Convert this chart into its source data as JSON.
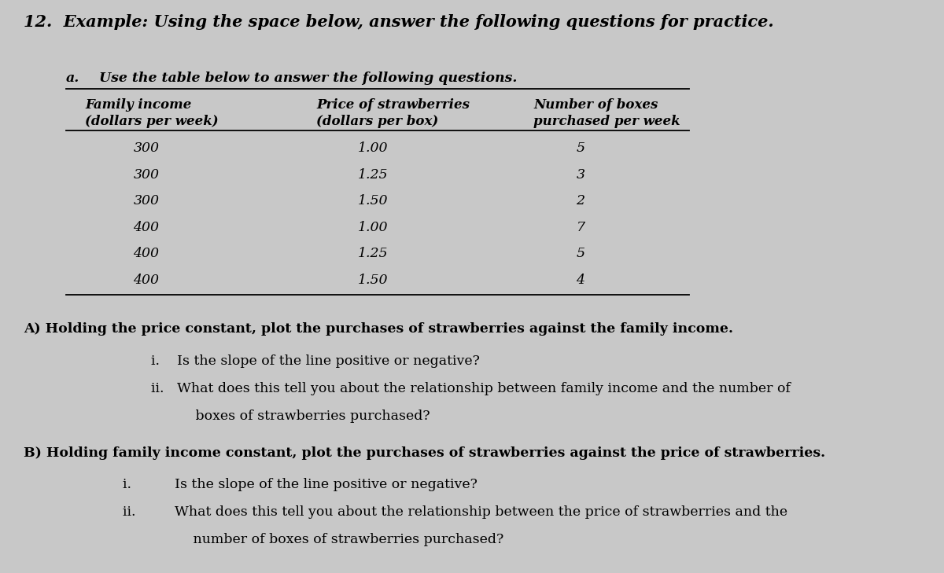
{
  "bg_color": "#c8c8c8",
  "title": "12.  Example: Using the space below, answer the following questions for practice.",
  "section_a_label": "a.",
  "section_a_text": "Use the table below to answer the following questions.",
  "col1_header": "Family income",
  "col1_subheader": "(dollars per week)",
  "col2_header": "Price of strawberries",
  "col2_subheader": "(dollars per box)",
  "col3_header": "Number of boxes",
  "col3_subheader": "purchased per week",
  "table_data": [
    [
      "300",
      "1.00",
      "5"
    ],
    [
      "300",
      "1.25",
      "3"
    ],
    [
      "300",
      "1.50",
      "2"
    ],
    [
      "400",
      "1.00",
      "7"
    ],
    [
      "400",
      "1.25",
      "5"
    ],
    [
      "400",
      "1.50",
      "4"
    ]
  ],
  "section_A_text": "A) Holding the price constant, plot the purchases of strawberries against the family income.",
  "section_A_i": "i.    Is the slope of the line positive or negative?",
  "section_A_ii": "ii.   What does this tell you about the relationship between family income and the number of",
  "section_A_ii2": "       boxes of strawberries purchased?",
  "section_B_text": "B) Holding family income constant, plot the purchases of strawberries against the price of strawberries.",
  "section_B_i": "i.          Is the slope of the line positive or negative?",
  "section_B_ii": "ii.         What does this tell you about the relationship between the price of strawberries and the",
  "section_B_ii2": "             number of boxes of strawberries purchased?"
}
